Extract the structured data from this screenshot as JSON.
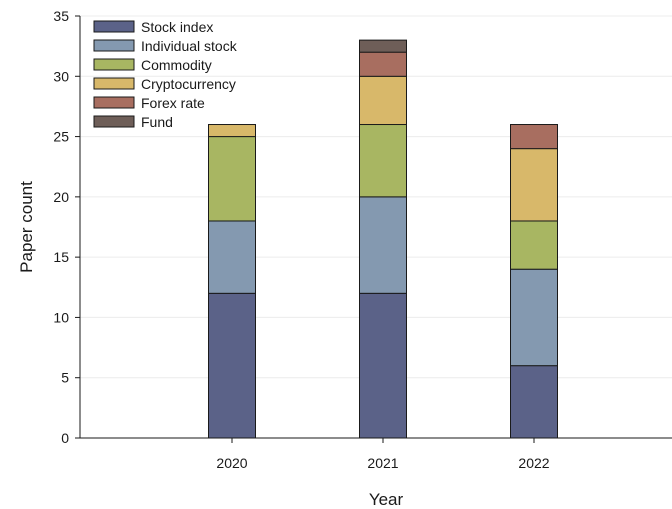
{
  "chart_data": {
    "type": "bar",
    "stacked": true,
    "title": "",
    "xlabel": "Year",
    "ylabel": "Paper count",
    "ylim": [
      0,
      35
    ],
    "yticks": [
      0,
      5,
      10,
      15,
      20,
      25,
      30,
      35
    ],
    "grid": true,
    "legend_position": "top-left",
    "categories": [
      "2020",
      "2021",
      "2022"
    ],
    "series": [
      {
        "name": "Stock index",
        "color": "#5b6288",
        "values": [
          12,
          12,
          6
        ]
      },
      {
        "name": "Individual stock",
        "color": "#8499b0",
        "values": [
          6,
          8,
          8
        ]
      },
      {
        "name": "Commodity",
        "color": "#a8b662",
        "values": [
          7,
          6,
          4
        ]
      },
      {
        "name": "Cryptocurrency",
        "color": "#d8b86a",
        "values": [
          1,
          4,
          6
        ]
      },
      {
        "name": "Forex rate",
        "color": "#a86e60",
        "values": [
          0,
          2,
          2
        ]
      },
      {
        "name": "Fund",
        "color": "#6e5e58",
        "values": [
          0,
          1,
          0
        ]
      }
    ]
  }
}
